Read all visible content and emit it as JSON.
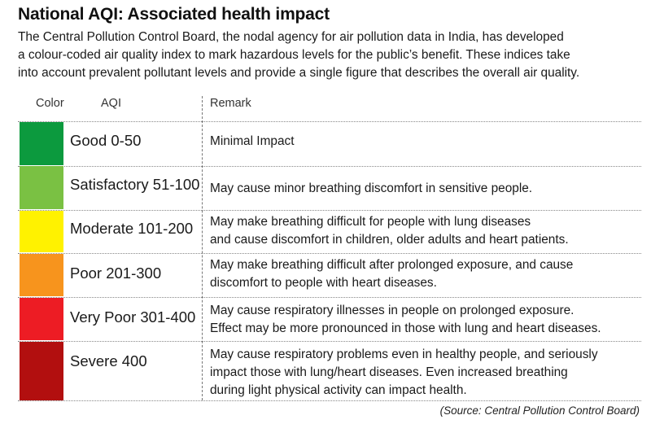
{
  "title": "National AQI: Associated health impact",
  "intro": [
    "The Central Pollution Control Board, the nodal agency for air pollution data in India, has developed",
    "a colour-coded air quality index to mark hazardous levels for the public’s benefit. These indices take",
    "into account prevalent pollutant levels and provide a single figure that describes the overall air quality."
  ],
  "table": {
    "headers": {
      "color": "Color",
      "aqi": "AQI",
      "remark": "Remark"
    },
    "rows": [
      {
        "color": "#0c9a3e",
        "aqi": "Good 0-50",
        "remark": [
          "Minimal Impact"
        ]
      },
      {
        "color": "#7ac143",
        "aqi": "Satisfactory 51-100",
        "remark": [
          "May cause minor breathing discomfort in sensitive people."
        ]
      },
      {
        "color": "#fff200",
        "aqi": "Moderate 101-200",
        "remark": [
          "May make breathing difficult for people with lung diseases",
          "and cause discomfort in children, older adults and heart patients."
        ]
      },
      {
        "color": "#f7941d",
        "aqi": "Poor 201-300",
        "remark": [
          "May make breathing difficult after prolonged exposure, and cause",
          "discomfort to people with heart diseases."
        ]
      },
      {
        "color": "#ed1c24",
        "aqi": "Very Poor 301-400",
        "remark": [
          "May cause respiratory illnesses in people on prolonged exposure.",
          "Effect may be more pronounced in those with lung and heart diseases."
        ]
      },
      {
        "color": "#b20f0f",
        "aqi": "Severe 400",
        "remark": [
          "May cause respiratory problems even in healthy people, and seriously",
          "impact those with lung/heart diseases. Even increased breathing",
          "during light physical activity can impact health."
        ]
      }
    ]
  },
  "source": "(Source: Central Pollution Control Board)"
}
